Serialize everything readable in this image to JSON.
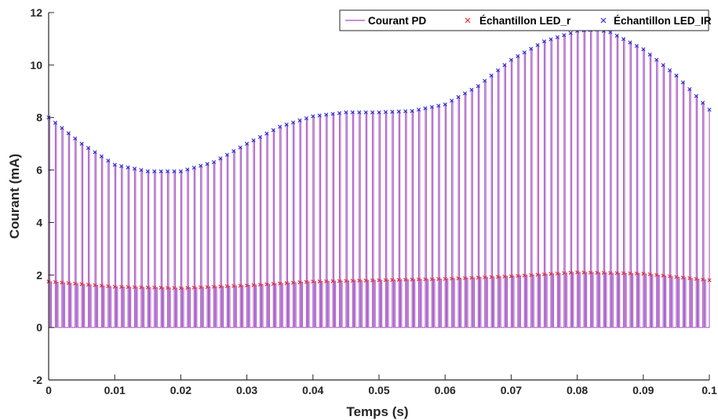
{
  "chart_data": {
    "type": "line",
    "xlabel": "Temps (s)",
    "ylabel": "Courant (mA)",
    "xlim": [
      0,
      0.1
    ],
    "ylim": [
      -2,
      12
    ],
    "x_ticks": [
      0,
      0.01,
      0.02,
      0.03,
      0.04,
      0.05,
      0.06,
      0.07,
      0.08,
      0.09,
      0.1
    ],
    "x_tick_labels": [
      "0",
      "0.01",
      "0.02",
      "0.03",
      "0.04",
      "0.05",
      "0.06",
      "0.07",
      "0.08",
      "0.09",
      "0.1"
    ],
    "y_ticks": [
      -2,
      0,
      2,
      4,
      6,
      8,
      10,
      12
    ],
    "y_tick_labels": [
      "-2",
      "0",
      "2",
      "4",
      "6",
      "8",
      "10",
      "12"
    ],
    "legend_position": "top-right",
    "grid": false,
    "colors": {
      "pd": "#a24fc2",
      "led_r": "#e8322f",
      "led_ir": "#2b2fd6",
      "axis": "#262626"
    },
    "series": [
      {
        "name": "Courant PD",
        "style": "pulse-train",
        "pulse_period": 0.001,
        "baseline": 0,
        "note_on_pulses": "Each period contains an IR pulse whose height follows the Échantillon LED_IR envelope and a red pulse whose height follows the Échantillon LED_r envelope."
      },
      {
        "name": "Échantillon LED_r",
        "style": "x-markers",
        "x": [
          0,
          0.01,
          0.02,
          0.03,
          0.04,
          0.05,
          0.06,
          0.07,
          0.08,
          0.09,
          0.1
        ],
        "values": [
          1.75,
          1.55,
          1.5,
          1.6,
          1.75,
          1.8,
          1.85,
          1.95,
          2.1,
          2.05,
          1.8
        ]
      },
      {
        "name": "Échantillon LED_IR",
        "style": "x-markers",
        "x": [
          0,
          0.005,
          0.01,
          0.015,
          0.02,
          0.025,
          0.03,
          0.035,
          0.04,
          0.045,
          0.05,
          0.055,
          0.06,
          0.065,
          0.07,
          0.075,
          0.08,
          0.083,
          0.085,
          0.09,
          0.095,
          0.1
        ],
        "values": [
          8.0,
          7.0,
          6.2,
          5.95,
          5.95,
          6.3,
          7.0,
          7.65,
          8.05,
          8.2,
          8.2,
          8.25,
          8.5,
          9.2,
          10.2,
          10.9,
          11.3,
          11.35,
          11.25,
          10.6,
          9.6,
          8.3
        ]
      }
    ]
  }
}
